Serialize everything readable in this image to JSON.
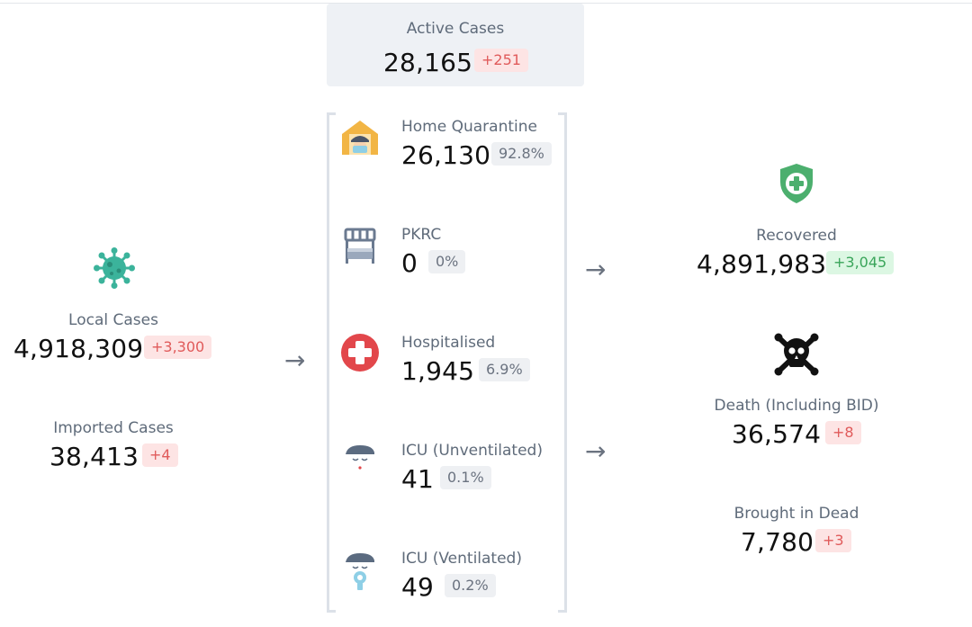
{
  "active": {
    "label": "Active Cases",
    "value": "28,165",
    "change": "+251"
  },
  "local": {
    "label": "Local Cases",
    "value": "4,918,309",
    "change": "+3,300"
  },
  "imported": {
    "label": "Imported Cases",
    "value": "38,413",
    "change": "+4"
  },
  "breakdown": [
    {
      "label": "Home Quarantine",
      "value": "26,130",
      "percent": "92.8%",
      "icon": "home-quarantine-icon"
    },
    {
      "label": "PKRC",
      "value": "0",
      "percent": "0%",
      "icon": "bed-icon"
    },
    {
      "label": "Hospitalised",
      "value": "1,945",
      "percent": "6.9%",
      "icon": "hospital-cross-icon"
    },
    {
      "label": "ICU (Unventilated)",
      "value": "41",
      "percent": "0.1%",
      "icon": "icu-patient-icon"
    },
    {
      "label": "ICU (Ventilated)",
      "value": "49",
      "percent": "0.2%",
      "icon": "ventilator-patient-icon"
    }
  ],
  "recovered": {
    "label": "Recovered",
    "value": "4,891,983",
    "change": "+3,045"
  },
  "death": {
    "label": "Death (Including BID)",
    "value": "36,574",
    "change": "+8"
  },
  "bid": {
    "label": "Brought in Dead",
    "value": "7,780",
    "change": "+3"
  },
  "colors": {
    "red_badge": "#fde4e4",
    "green_badge": "#dcf7e3",
    "shield": "#4caf6e",
    "virus": "#3bb39b",
    "hospital": "#e2474b"
  }
}
